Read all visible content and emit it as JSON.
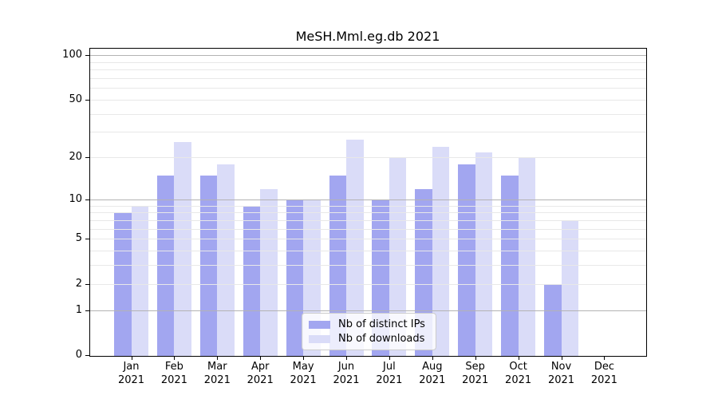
{
  "title": "MeSH.Mml.eg.db 2021",
  "chart_data": {
    "type": "bar",
    "title": "MeSH.Mml.eg.db 2021",
    "categories": [
      "Jan 2021",
      "Feb 2021",
      "Mar 2021",
      "Apr 2021",
      "May 2021",
      "Jun 2021",
      "Jul 2021",
      "Aug 2021",
      "Sep 2021",
      "Oct 2021",
      "Nov 2021",
      "Dec 2021"
    ],
    "series": [
      {
        "name": "Nb of distinct IPs",
        "color": "#a2a6f0",
        "values": [
          8,
          15,
          15,
          9,
          10,
          15,
          10,
          12,
          18,
          15,
          2,
          0
        ]
      },
      {
        "name": "Nb of downloads",
        "color": "#dadcf8",
        "values": [
          9,
          26,
          18,
          12,
          10,
          27,
          20,
          24,
          22,
          20,
          7,
          0
        ]
      }
    ],
    "xlabel": "",
    "ylabel": "",
    "yscale": "log1p",
    "ylim": [
      0,
      110
    ],
    "yticks": [
      0,
      1,
      2,
      5,
      10,
      20,
      50,
      100
    ],
    "grid": "horizontal",
    "gridlines_major": [
      1,
      10,
      100
    ],
    "gridlines_minor": [
      2,
      3,
      4,
      5,
      6,
      7,
      8,
      9,
      20,
      30,
      40,
      50,
      60,
      70,
      80,
      90
    ],
    "legend_position": "lower center"
  },
  "legend": {
    "items": [
      {
        "label": "Nb of distinct IPs",
        "swatch": "ips"
      },
      {
        "label": "Nb of downloads",
        "swatch": "downloads"
      }
    ]
  },
  "colors": {
    "ips_bar": "#a2a6f0",
    "downloads_bar": "#dadcf8",
    "grid_major": "#b3b3b3",
    "grid_minor": "#e8e8e8",
    "axis": "#000000",
    "text": "#000000",
    "legend_border": "#cccccc",
    "background": "#ffffff"
  }
}
